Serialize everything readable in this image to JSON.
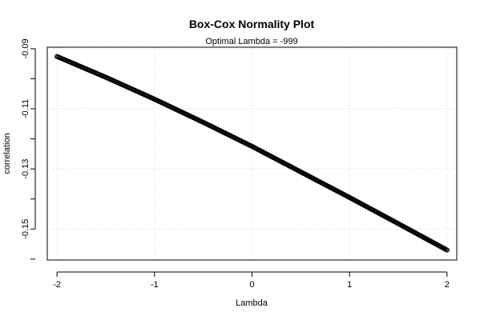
{
  "chart_data": {
    "type": "scatter",
    "title": "Box-Cox Normality Plot",
    "subtitle": "Optimal Lambda = -999",
    "xlabel": "Lambda",
    "ylabel": "correlation",
    "xlim": [
      -2.1,
      2.1
    ],
    "ylim": [
      -0.1603,
      -0.0895
    ],
    "x_ticks": [
      -2,
      -1,
      0,
      1,
      2
    ],
    "x_tick_labels": [
      "-2",
      "-1",
      "0",
      "1",
      "2"
    ],
    "y_ticks": [
      -0.09,
      -0.11,
      -0.13,
      -0.15
    ],
    "y_tick_labels": [
      "-0.09",
      "-0.11",
      "-0.13",
      "-0.15"
    ],
    "grid": true,
    "marker": "open-circle",
    "marker_color": "#000000",
    "grid_color": "#d3d3d3",
    "series": [
      {
        "x_range": [
          -2,
          2
        ],
        "n_points": 401,
        "anchor_x": [
          -2,
          -1.5,
          -1,
          -0.5,
          0,
          0.5,
          1,
          1.5,
          2
        ],
        "anchor_y": [
          -0.0926,
          -0.0995,
          -0.1068,
          -0.1145,
          -0.1225,
          -0.131,
          -0.1395,
          -0.1482,
          -0.157
        ]
      }
    ]
  }
}
